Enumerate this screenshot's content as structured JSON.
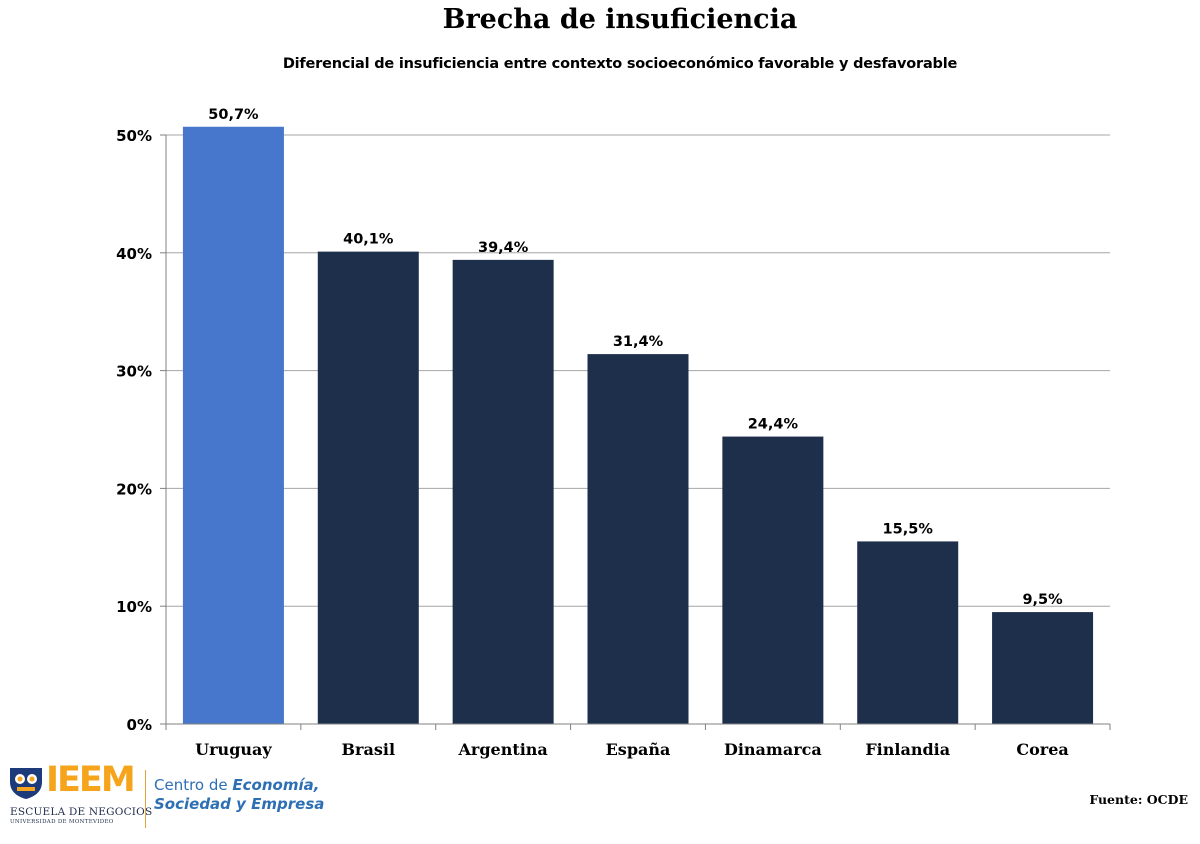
{
  "chart_data": {
    "type": "bar",
    "title": "Brecha de insuficiencia",
    "subtitle": "Diferencial de insuficiencia entre contexto socioeconómico favorable y desfavorable",
    "categories": [
      "Uruguay",
      "Brasil",
      "Argentina",
      "España",
      "Dinamarca",
      "Finlandia",
      "Corea"
    ],
    "values": [
      50.7,
      40.1,
      39.4,
      31.4,
      24.4,
      15.5,
      9.5
    ],
    "data_labels": [
      "50,7%",
      "40,1%",
      "39,4%",
      "31,4%",
      "24,4%",
      "15,5%",
      "9,5%"
    ],
    "highlight_category": "Uruguay",
    "ylim": [
      0,
      50
    ],
    "yticks": [
      0,
      10,
      20,
      30,
      40,
      50
    ],
    "ytick_labels": [
      "0%",
      "10%",
      "20%",
      "30%",
      "40%",
      "50%"
    ],
    "xlabel": "",
    "ylabel": "",
    "grid": true,
    "legend": "none",
    "colors": {
      "highlight": "#4677cc",
      "default": "#1e2f4b",
      "grid": "#a6a6a6",
      "axis": "#808080"
    }
  },
  "footer": {
    "source": "Fuente:  OCDE",
    "logo": {
      "word": "IEEM",
      "line1": "ESCUELA DE NEGOCIOS",
      "line2": "UNIVERSIDAD DE MONTEVIDEO",
      "center_prefix": "Centro de ",
      "center_emphasis": "Economía,",
      "center_line2": "Sociedad y Empresa"
    }
  }
}
